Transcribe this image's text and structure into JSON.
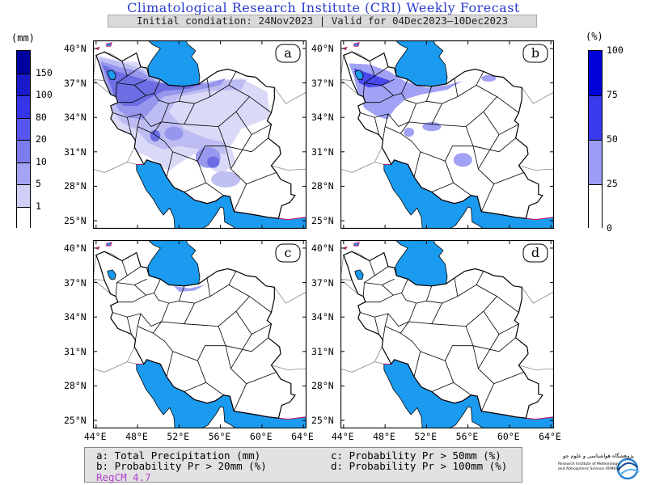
{
  "header": {
    "title": "Climatological Research Institute (CRI) Weekly Forecast",
    "subtitle": "Initial condiation: 24Nov2023 | Valid for 04Dec2023–10Dec2023"
  },
  "colorbar_left": {
    "unit": "(mm)",
    "labels": [
      "150",
      "100",
      "80",
      "20",
      "10",
      "5",
      "1"
    ],
    "colors": [
      "#0000a0",
      "#1a1acc",
      "#3434e8",
      "#5656ee",
      "#7c7cee",
      "#a4a4f2",
      "#cfcff8",
      "#ffffff"
    ]
  },
  "colorbar_right": {
    "unit": "(%)",
    "labels": [
      "100",
      "75",
      "50",
      "25",
      "0"
    ],
    "colors": [
      "#0000d8",
      "#3a3aec",
      "#9c9cf4",
      "#ffffff"
    ]
  },
  "panels": [
    {
      "letter": "a",
      "field": "Total Precipitation"
    },
    {
      "letter": "b",
      "field": "Probability Pr > 20mm"
    },
    {
      "letter": "c",
      "field": "Probability Pr > 50mm"
    },
    {
      "letter": "d",
      "field": "Probability Pr > 100mm"
    }
  ],
  "axes": {
    "lat_labels": [
      "40°N",
      "37°N",
      "34°N",
      "31°N",
      "28°N",
      "25°N"
    ],
    "lon_labels": [
      "44°E",
      "48°E",
      "52°E",
      "56°E",
      "60°E",
      "64°E"
    ]
  },
  "legend": {
    "a": "a: Total Precipitation (mm)",
    "b": "b: Probability Pr > 20mm (%)",
    "c": "c: Probability Pr > 50mm (%)",
    "d": "d: Probability Pr > 100mm (%)",
    "model": "RegCM 4.7"
  },
  "logo": {
    "line1": "پژوهشگاه هواشناسی و علوم جو",
    "line2": "Research Institute of Meteorology",
    "line3": "and Atmospheric Science (RIMAS)"
  },
  "colors": {
    "sea": "#1a9bf0",
    "coast": "#d01060",
    "title": "#2a3cd0"
  }
}
